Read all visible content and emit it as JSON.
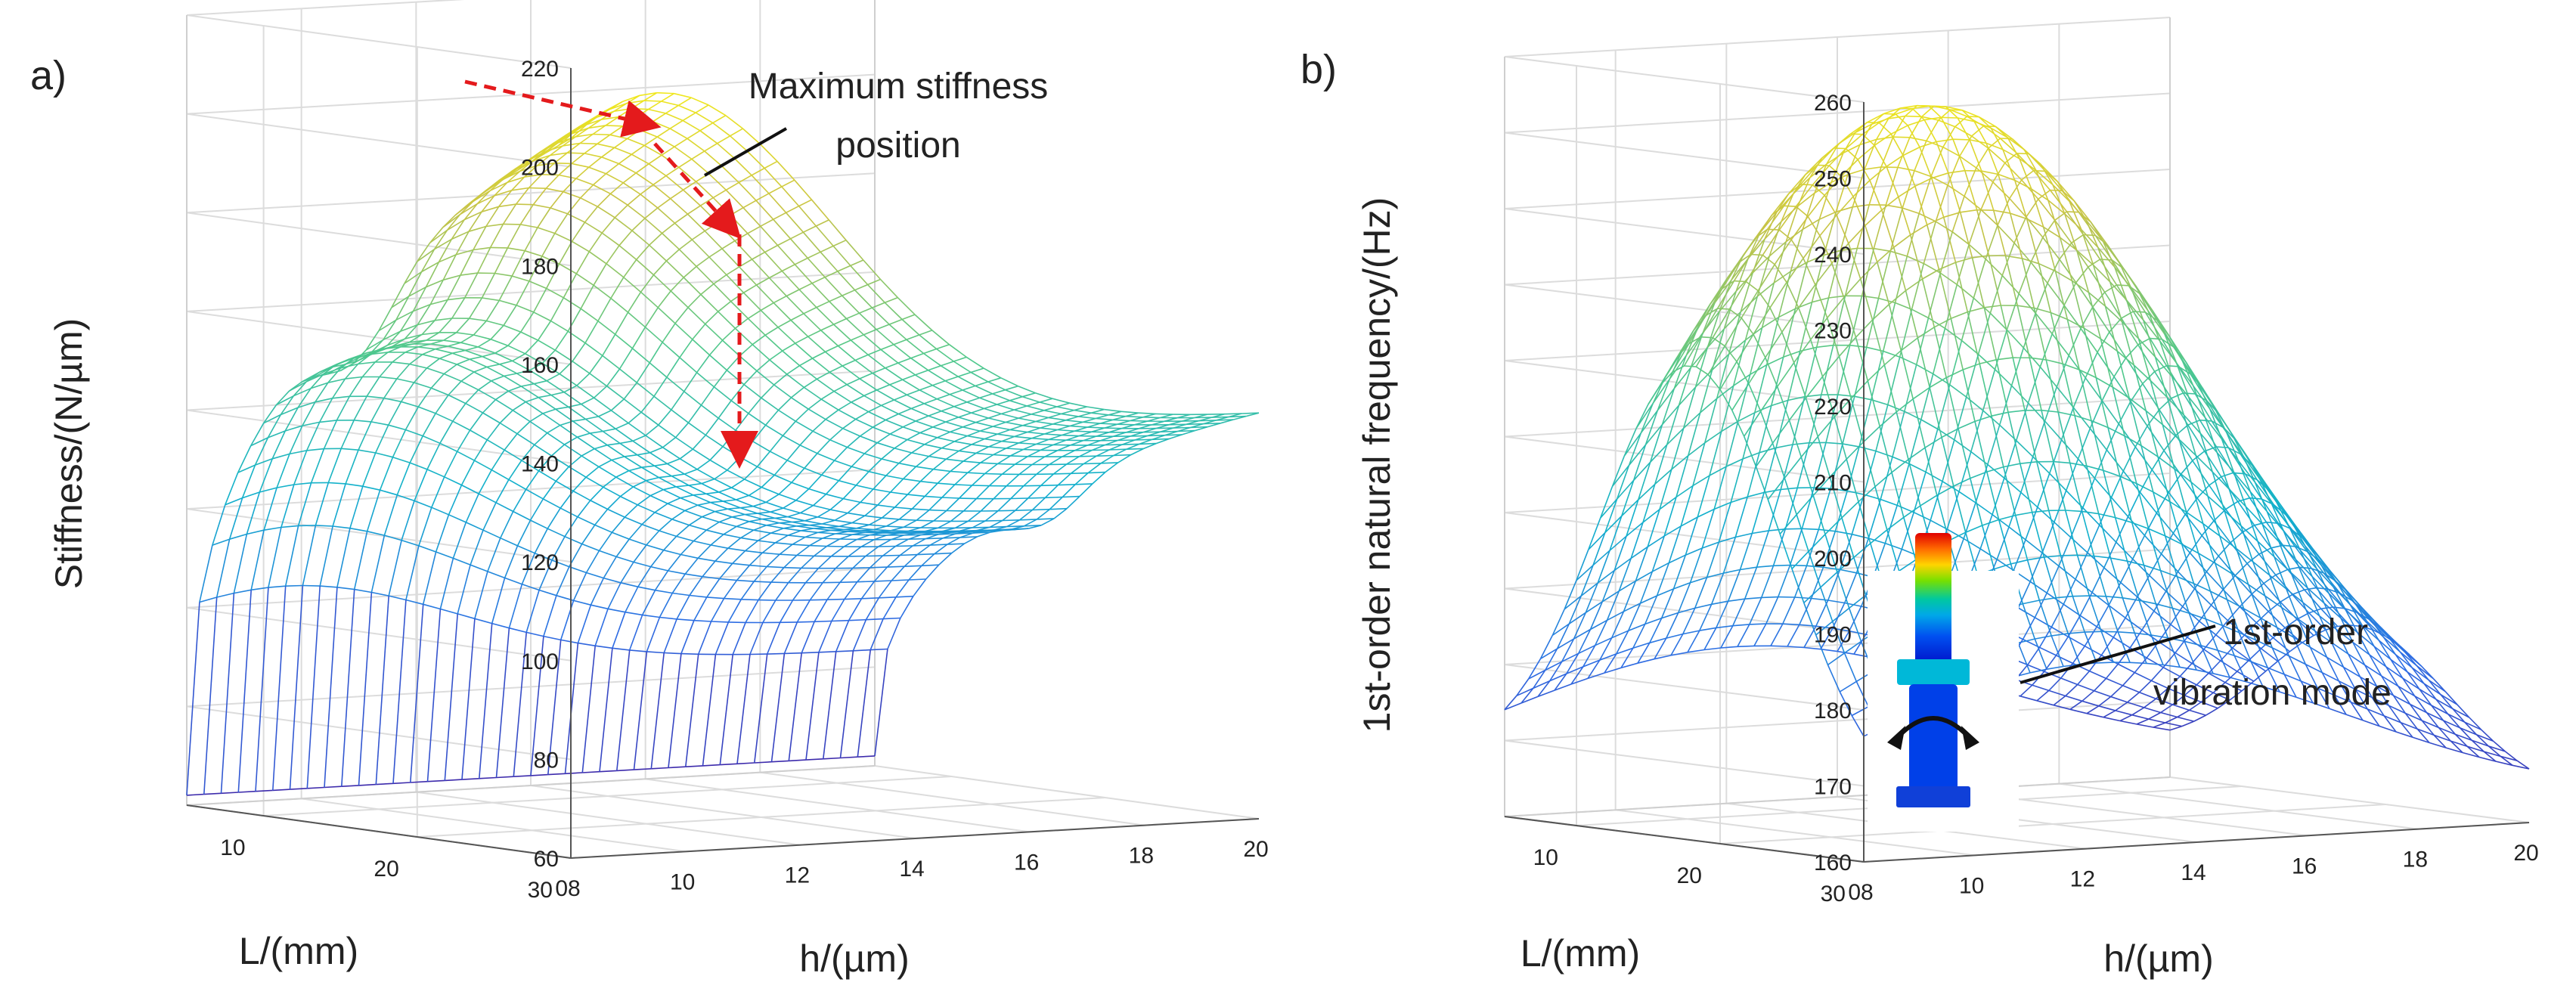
{
  "chart_data": [
    {
      "panel_label": "a)",
      "type": "surface",
      "zlabel": "Stiffness/(N/µm)",
      "xlabel": "h/(µm)",
      "ylabel": "L/(mm)",
      "z_ticks": [
        "60",
        "80",
        "100",
        "120",
        "140",
        "160",
        "180",
        "200",
        "220"
      ],
      "x_ticks": [
        "08",
        "10",
        "12",
        "14",
        "16",
        "18",
        "20"
      ],
      "y_ticks": [
        "30",
        "20",
        "10"
      ],
      "zlim": [
        60,
        220
      ],
      "xlim": [
        8,
        20
      ],
      "ylim": [
        5,
        30
      ],
      "annotation": {
        "line1": "Maximum stiffness",
        "line2": "position"
      }
    },
    {
      "panel_label": "b)",
      "type": "surface",
      "zlabel": "1st-order natural frequency/(Hz)",
      "xlabel": "h/(µm)",
      "ylabel": "L/(mm)",
      "z_ticks": [
        "160",
        "170",
        "180",
        "190",
        "200",
        "210",
        "220",
        "230",
        "240",
        "250",
        "260"
      ],
      "x_ticks": [
        "08",
        "10",
        "12",
        "14",
        "16",
        "18",
        "20"
      ],
      "y_ticks": [
        "30",
        "20",
        "10"
      ],
      "zlim": [
        160,
        260
      ],
      "xlim": [
        8,
        20
      ],
      "ylim": [
        5,
        30
      ],
      "annotation": {
        "line1": "1st-order",
        "line2": "vibration mode"
      }
    }
  ]
}
